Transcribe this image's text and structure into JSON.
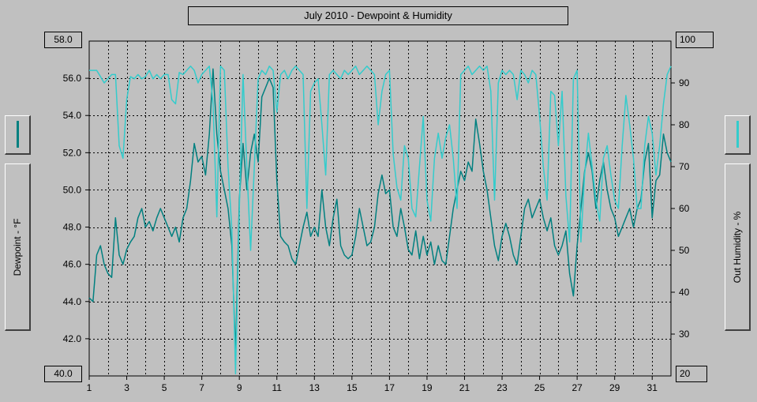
{
  "chart_data": {
    "type": "line",
    "title": "July 2010 - Dewpoint & Humidity",
    "ylabel": "Dewpoint - °F",
    "y2label": "Out Humidity - %",
    "xlim": [
      1,
      32
    ],
    "ylim": [
      40,
      58
    ],
    "y2lim": [
      20,
      100
    ],
    "x_ticks": [
      "1",
      "3",
      "5",
      "7",
      "9",
      "11",
      "13",
      "15",
      "17",
      "19",
      "21",
      "23",
      "25",
      "27",
      "29",
      "31"
    ],
    "y_ticks": [
      "40.0",
      "42.0",
      "44.0",
      "46.0",
      "48.0",
      "50.0",
      "52.0",
      "54.0",
      "56.0",
      "58.0"
    ],
    "y2_ticks": [
      "20",
      "30",
      "40",
      "50",
      "60",
      "70",
      "80",
      "90",
      "100"
    ],
    "grid": true,
    "series": [
      {
        "axis": "left",
        "color": "#008080",
        "points": [
          [
            1.0,
            44.2
          ],
          [
            1.2,
            44.0
          ],
          [
            1.4,
            46.5
          ],
          [
            1.6,
            47.0
          ],
          [
            1.8,
            46.0
          ],
          [
            2.0,
            45.5
          ],
          [
            2.2,
            45.3
          ],
          [
            2.4,
            48.5
          ],
          [
            2.6,
            46.5
          ],
          [
            2.8,
            46.0
          ],
          [
            3.0,
            46.8
          ],
          [
            3.2,
            47.2
          ],
          [
            3.4,
            47.5
          ],
          [
            3.6,
            48.5
          ],
          [
            3.8,
            49.0
          ],
          [
            4.0,
            48.0
          ],
          [
            4.2,
            48.3
          ],
          [
            4.4,
            47.8
          ],
          [
            4.6,
            48.5
          ],
          [
            4.8,
            49.0
          ],
          [
            5.0,
            48.5
          ],
          [
            5.2,
            48.0
          ],
          [
            5.4,
            47.5
          ],
          [
            5.6,
            48.0
          ],
          [
            5.8,
            47.2
          ],
          [
            6.0,
            48.5
          ],
          [
            6.2,
            49.0
          ],
          [
            6.4,
            50.5
          ],
          [
            6.6,
            52.5
          ],
          [
            6.8,
            51.5
          ],
          [
            7.0,
            51.8
          ],
          [
            7.2,
            50.8
          ],
          [
            7.4,
            53.0
          ],
          [
            7.6,
            56.5
          ],
          [
            7.8,
            53.0
          ],
          [
            8.0,
            51.0
          ],
          [
            8.2,
            50.0
          ],
          [
            8.4,
            49.0
          ],
          [
            8.6,
            47.0
          ],
          [
            8.8,
            41.2
          ],
          [
            9.0,
            49.5
          ],
          [
            9.2,
            52.5
          ],
          [
            9.4,
            50.0
          ],
          [
            9.6,
            52.0
          ],
          [
            9.8,
            53.0
          ],
          [
            10.0,
            51.5
          ],
          [
            10.2,
            55.0
          ],
          [
            10.4,
            55.5
          ],
          [
            10.6,
            56.0
          ],
          [
            10.8,
            55.5
          ],
          [
            11.0,
            50.5
          ],
          [
            11.2,
            47.5
          ],
          [
            11.4,
            47.2
          ],
          [
            11.6,
            47.0
          ],
          [
            11.8,
            46.3
          ],
          [
            12.0,
            46.0
          ],
          [
            12.2,
            47.0
          ],
          [
            12.4,
            48.0
          ],
          [
            12.6,
            48.8
          ],
          [
            12.8,
            47.5
          ],
          [
            13.0,
            48.0
          ],
          [
            13.2,
            47.5
          ],
          [
            13.4,
            50.0
          ],
          [
            13.6,
            48.0
          ],
          [
            13.8,
            47.0
          ],
          [
            14.0,
            48.5
          ],
          [
            14.2,
            49.5
          ],
          [
            14.4,
            47.0
          ],
          [
            14.6,
            46.5
          ],
          [
            14.8,
            46.3
          ],
          [
            15.0,
            46.5
          ],
          [
            15.2,
            47.5
          ],
          [
            15.4,
            49.0
          ],
          [
            15.6,
            48.0
          ],
          [
            15.8,
            47.0
          ],
          [
            16.0,
            47.2
          ],
          [
            16.2,
            48.0
          ],
          [
            16.4,
            49.8
          ],
          [
            16.6,
            50.8
          ],
          [
            16.8,
            49.8
          ],
          [
            17.0,
            50.0
          ],
          [
            17.2,
            48.0
          ],
          [
            17.4,
            47.5
          ],
          [
            17.6,
            49.0
          ],
          [
            17.8,
            48.0
          ],
          [
            18.0,
            46.8
          ],
          [
            18.2,
            46.5
          ],
          [
            18.4,
            47.8
          ],
          [
            18.6,
            46.3
          ],
          [
            18.8,
            47.5
          ],
          [
            19.0,
            46.5
          ],
          [
            19.2,
            47.2
          ],
          [
            19.4,
            46.0
          ],
          [
            19.6,
            47.0
          ],
          [
            19.8,
            46.2
          ],
          [
            20.0,
            46.0
          ],
          [
            20.2,
            47.5
          ],
          [
            20.4,
            49.0
          ],
          [
            20.6,
            50.0
          ],
          [
            20.8,
            51.0
          ],
          [
            21.0,
            50.5
          ],
          [
            21.2,
            51.5
          ],
          [
            21.4,
            51.0
          ],
          [
            21.6,
            53.8
          ],
          [
            21.8,
            52.5
          ],
          [
            22.0,
            51.0
          ],
          [
            22.2,
            50.0
          ],
          [
            22.4,
            48.5
          ],
          [
            22.6,
            47.0
          ],
          [
            22.8,
            46.2
          ],
          [
            23.0,
            47.5
          ],
          [
            23.2,
            48.2
          ],
          [
            23.4,
            47.5
          ],
          [
            23.6,
            46.5
          ],
          [
            23.8,
            46.0
          ],
          [
            24.0,
            47.5
          ],
          [
            24.2,
            49.0
          ],
          [
            24.4,
            49.5
          ],
          [
            24.6,
            48.5
          ],
          [
            24.8,
            49.0
          ],
          [
            25.0,
            49.5
          ],
          [
            25.2,
            48.5
          ],
          [
            25.4,
            47.8
          ],
          [
            25.6,
            48.5
          ],
          [
            25.8,
            47.0
          ],
          [
            26.0,
            46.5
          ],
          [
            26.2,
            47.0
          ],
          [
            26.4,
            47.8
          ],
          [
            26.6,
            45.5
          ],
          [
            26.8,
            44.3
          ],
          [
            27.0,
            47.0
          ],
          [
            27.2,
            49.0
          ],
          [
            27.4,
            51.0
          ],
          [
            27.6,
            52.0
          ],
          [
            27.8,
            51.0
          ],
          [
            28.0,
            49.0
          ],
          [
            28.2,
            50.5
          ],
          [
            28.4,
            51.5
          ],
          [
            28.6,
            50.0
          ],
          [
            28.8,
            49.0
          ],
          [
            29.0,
            48.5
          ],
          [
            29.2,
            47.5
          ],
          [
            29.4,
            48.0
          ],
          [
            29.6,
            48.5
          ],
          [
            29.8,
            49.0
          ],
          [
            30.0,
            48.0
          ],
          [
            30.2,
            49.0
          ],
          [
            30.4,
            49.5
          ],
          [
            30.6,
            51.5
          ],
          [
            30.8,
            52.5
          ],
          [
            31.0,
            48.5
          ],
          [
            31.2,
            50.5
          ],
          [
            31.4,
            50.8
          ],
          [
            31.6,
            53.0
          ],
          [
            31.8,
            52.0
          ],
          [
            32.0,
            51.5
          ]
        ]
      },
      {
        "axis": "right",
        "color": "#33cccc",
        "points": [
          [
            1.0,
            93.0
          ],
          [
            1.2,
            93.0
          ],
          [
            1.4,
            93.0
          ],
          [
            1.6,
            91.5
          ],
          [
            1.8,
            90.0
          ],
          [
            2.0,
            91.0
          ],
          [
            2.2,
            92.0
          ],
          [
            2.4,
            92.0
          ],
          [
            2.6,
            75.0
          ],
          [
            2.8,
            72.0
          ],
          [
            3.0,
            86.0
          ],
          [
            3.2,
            91.5
          ],
          [
            3.4,
            91.0
          ],
          [
            3.6,
            92.0
          ],
          [
            3.8,
            91.0
          ],
          [
            4.0,
            91.5
          ],
          [
            4.2,
            93.0
          ],
          [
            4.4,
            91.0
          ],
          [
            4.6,
            92.0
          ],
          [
            4.8,
            91.0
          ],
          [
            5.0,
            92.0
          ],
          [
            5.2,
            92.0
          ],
          [
            5.4,
            86.0
          ],
          [
            5.6,
            85.0
          ],
          [
            5.8,
            92.5
          ],
          [
            6.0,
            92.0
          ],
          [
            6.2,
            93.0
          ],
          [
            6.4,
            94.0
          ],
          [
            6.6,
            93.0
          ],
          [
            6.8,
            90.0
          ],
          [
            7.0,
            92.0
          ],
          [
            7.2,
            93.0
          ],
          [
            7.4,
            94.0
          ],
          [
            7.6,
            85.0
          ],
          [
            7.8,
            58.0
          ],
          [
            8.0,
            94.0
          ],
          [
            8.2,
            93.0
          ],
          [
            8.4,
            70.0
          ],
          [
            8.6,
            55.0
          ],
          [
            8.8,
            20.5
          ],
          [
            9.0,
            60.0
          ],
          [
            9.2,
            92.0
          ],
          [
            9.4,
            70.0
          ],
          [
            9.6,
            50.0
          ],
          [
            9.8,
            70.0
          ],
          [
            10.0,
            91.0
          ],
          [
            10.2,
            93.0
          ],
          [
            10.4,
            92.0
          ],
          [
            10.6,
            94.0
          ],
          [
            10.8,
            93.0
          ],
          [
            11.0,
            83.0
          ],
          [
            11.2,
            92.0
          ],
          [
            11.4,
            93.0
          ],
          [
            11.6,
            91.0
          ],
          [
            11.8,
            93.0
          ],
          [
            12.0,
            94.0
          ],
          [
            12.2,
            93.0
          ],
          [
            12.4,
            92.0
          ],
          [
            12.6,
            60.0
          ],
          [
            12.8,
            88.0
          ],
          [
            13.0,
            90.0
          ],
          [
            13.2,
            91.0
          ],
          [
            13.4,
            80.0
          ],
          [
            13.6,
            68.0
          ],
          [
            13.8,
            92.0
          ],
          [
            14.0,
            93.0
          ],
          [
            14.2,
            92.0
          ],
          [
            14.4,
            91.0
          ],
          [
            14.6,
            93.0
          ],
          [
            14.8,
            92.0
          ],
          [
            15.0,
            93.0
          ],
          [
            15.2,
            94.0
          ],
          [
            15.4,
            92.0
          ],
          [
            15.6,
            93.0
          ],
          [
            15.8,
            94.0
          ],
          [
            16.0,
            93.0
          ],
          [
            16.2,
            92.0
          ],
          [
            16.4,
            80.0
          ],
          [
            16.6,
            88.0
          ],
          [
            16.8,
            92.0
          ],
          [
            17.0,
            93.0
          ],
          [
            17.2,
            73.0
          ],
          [
            17.4,
            65.0
          ],
          [
            17.6,
            62.0
          ],
          [
            17.8,
            75.0
          ],
          [
            18.0,
            72.0
          ],
          [
            18.2,
            60.0
          ],
          [
            18.4,
            58.0
          ],
          [
            18.6,
            70.0
          ],
          [
            18.8,
            82.0
          ],
          [
            19.0,
            62.0
          ],
          [
            19.2,
            57.0
          ],
          [
            19.4,
            72.0
          ],
          [
            19.6,
            78.0
          ],
          [
            19.8,
            72.0
          ],
          [
            20.0,
            77.0
          ],
          [
            20.2,
            80.0
          ],
          [
            20.4,
            72.0
          ],
          [
            20.6,
            60.0
          ],
          [
            20.8,
            92.0
          ],
          [
            21.0,
            93.0
          ],
          [
            21.2,
            94.0
          ],
          [
            21.4,
            92.0
          ],
          [
            21.6,
            93.0
          ],
          [
            21.8,
            94.0
          ],
          [
            22.0,
            93.0
          ],
          [
            22.2,
            94.0
          ],
          [
            22.4,
            88.0
          ],
          [
            22.6,
            62.0
          ],
          [
            22.8,
            90.0
          ],
          [
            23.0,
            93.0
          ],
          [
            23.2,
            92.0
          ],
          [
            23.4,
            93.0
          ],
          [
            23.6,
            92.0
          ],
          [
            23.8,
            86.0
          ],
          [
            24.0,
            93.0
          ],
          [
            24.2,
            92.0
          ],
          [
            24.4,
            90.0
          ],
          [
            24.6,
            93.0
          ],
          [
            24.8,
            92.0
          ],
          [
            25.0,
            82.0
          ],
          [
            25.2,
            70.0
          ],
          [
            25.4,
            62.0
          ],
          [
            25.6,
            88.0
          ],
          [
            25.8,
            87.0
          ],
          [
            26.0,
            75.0
          ],
          [
            26.2,
            88.0
          ],
          [
            26.4,
            63.0
          ],
          [
            26.6,
            52.0
          ],
          [
            26.8,
            91.0
          ],
          [
            27.0,
            93.0
          ],
          [
            27.2,
            52.0
          ],
          [
            27.4,
            68.0
          ],
          [
            27.6,
            78.0
          ],
          [
            27.8,
            70.0
          ],
          [
            28.0,
            62.0
          ],
          [
            28.2,
            57.0
          ],
          [
            28.4,
            72.0
          ],
          [
            28.6,
            75.0
          ],
          [
            28.8,
            68.0
          ],
          [
            29.0,
            62.0
          ],
          [
            29.2,
            60.0
          ],
          [
            29.4,
            75.0
          ],
          [
            29.6,
            87.0
          ],
          [
            29.8,
            80.0
          ],
          [
            30.0,
            72.0
          ],
          [
            30.2,
            60.0
          ],
          [
            30.4,
            60.0
          ],
          [
            30.6,
            75.0
          ],
          [
            30.8,
            82.0
          ],
          [
            31.0,
            78.0
          ],
          [
            31.2,
            68.0
          ],
          [
            31.4,
            75.0
          ],
          [
            31.6,
            85.0
          ],
          [
            31.8,
            92.0
          ],
          [
            32.0,
            94.0
          ]
        ]
      }
    ]
  }
}
